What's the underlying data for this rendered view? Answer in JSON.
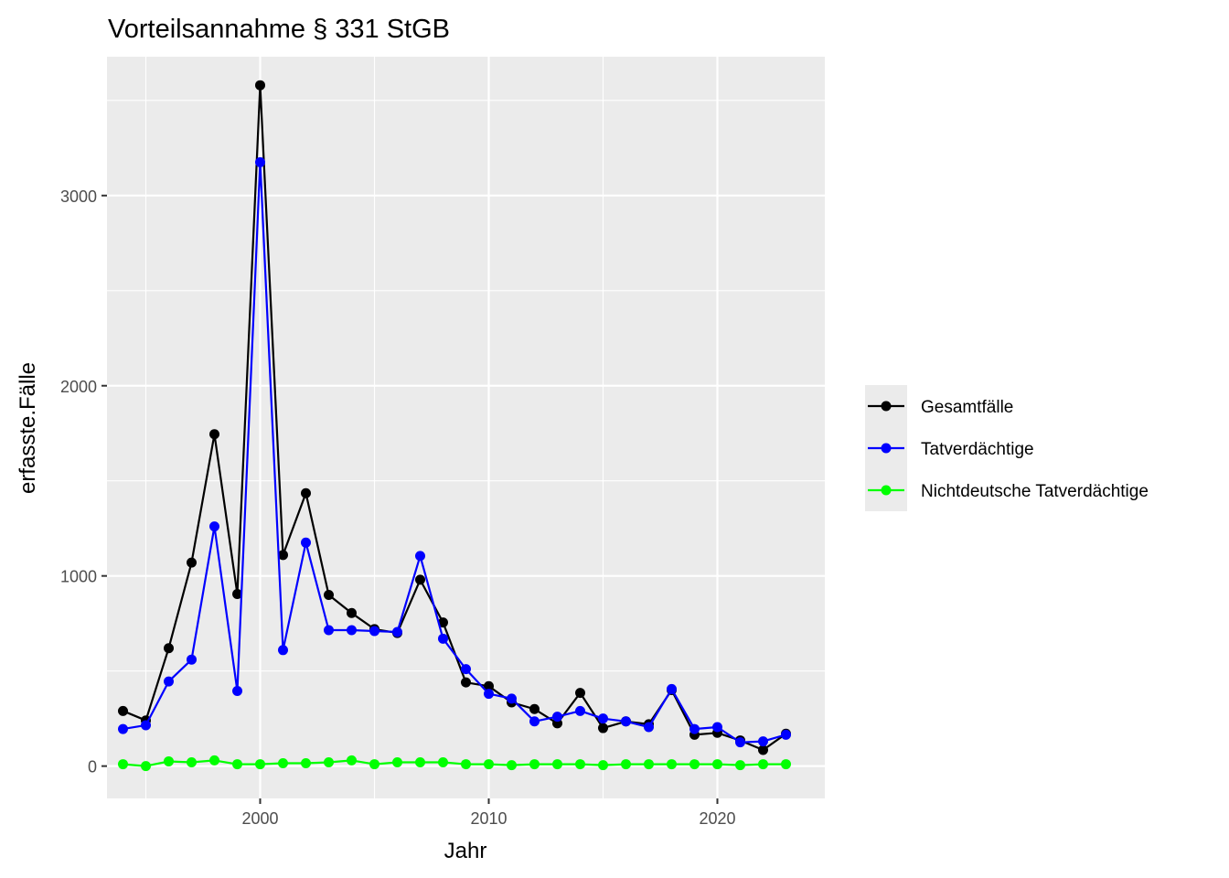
{
  "chart_data": {
    "type": "line",
    "title": "Vorteilsannahme § 331 StGB",
    "xlabel": "Jahr",
    "ylabel": "erfasste.Fälle",
    "xlim": [
      1993.3,
      2024.7
    ],
    "ylim": [
      -170,
      3730
    ],
    "x_ticks": [
      2000,
      2010,
      2020
    ],
    "y_ticks": [
      0,
      1000,
      2000,
      3000
    ],
    "grid": true,
    "legend_position": "right",
    "x": [
      1994,
      1995,
      1996,
      1997,
      1998,
      1999,
      2000,
      2001,
      2002,
      2003,
      2004,
      2005,
      2006,
      2007,
      2008,
      2009,
      2010,
      2011,
      2012,
      2013,
      2014,
      2015,
      2016,
      2017,
      2018,
      2019,
      2020,
      2021,
      2022,
      2023
    ],
    "series": [
      {
        "name": "Gesamtfälle",
        "color": "#000000",
        "values": [
          290,
          240,
          620,
          1070,
          1745,
          905,
          3580,
          1110,
          1435,
          900,
          805,
          720,
          700,
          980,
          755,
          440,
          420,
          335,
          300,
          225,
          385,
          200,
          235,
          220,
          400,
          165,
          175,
          135,
          85,
          170
        ]
      },
      {
        "name": "Tatverdächtige",
        "color": "#0000ff",
        "values": [
          195,
          215,
          445,
          560,
          1260,
          395,
          3175,
          610,
          1175,
          715,
          715,
          710,
          705,
          1105,
          670,
          510,
          380,
          355,
          235,
          260,
          290,
          250,
          235,
          205,
          405,
          195,
          205,
          125,
          130,
          165
        ]
      },
      {
        "name": "Nichtdeutsche Tatverdächtige",
        "color": "#00ff00",
        "values": [
          10,
          0,
          25,
          20,
          30,
          10,
          10,
          15,
          15,
          20,
          30,
          10,
          20,
          20,
          20,
          10,
          10,
          5,
          10,
          10,
          10,
          5,
          10,
          10,
          10,
          10,
          10,
          5,
          10,
          10
        ]
      }
    ]
  }
}
